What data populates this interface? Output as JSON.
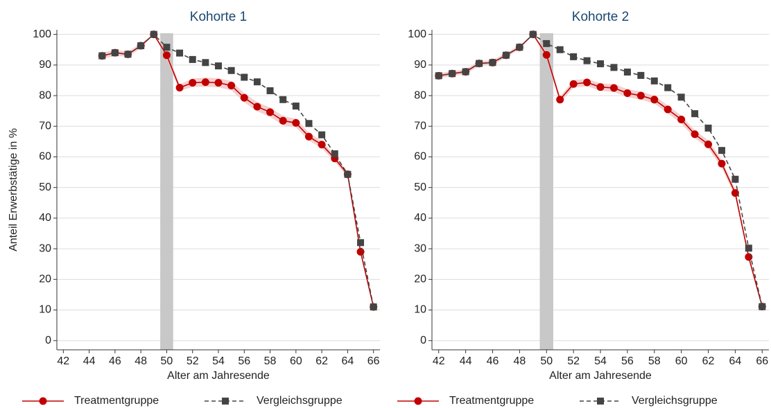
{
  "chart_data": [
    {
      "type": "line",
      "title": "Kohorte 1",
      "ylabel": "Anteil Erwerbstätige in %",
      "xlabel": "Alter am Jahresende",
      "x": [
        45,
        46,
        47,
        48,
        49,
        50,
        51,
        52,
        53,
        54,
        55,
        56,
        57,
        58,
        59,
        60,
        61,
        62,
        63,
        64,
        65,
        66
      ],
      "series": [
        {
          "name": "Treatmentgruppe",
          "color": "#c10000",
          "band_color": "#f2c4c4",
          "values": [
            93,
            94,
            93.5,
            96.3,
            100,
            93.2,
            82.6,
            84.2,
            84.4,
            84.2,
            83.3,
            79.3,
            76.4,
            74.6,
            71.8,
            71.1,
            66.6,
            64,
            59.5,
            54.3,
            29,
            11
          ],
          "lower": [
            92,
            93,
            92.7,
            95.5,
            100,
            92,
            81.6,
            82.8,
            82.9,
            82.7,
            81.8,
            77.8,
            74.9,
            73.1,
            70.3,
            69.7,
            65.3,
            62.8,
            58.4,
            53.4,
            28.3,
            10.6
          ],
          "upper": [
            94,
            95,
            94.3,
            97.1,
            100,
            94.4,
            83.6,
            85.6,
            85.9,
            85.7,
            84.8,
            80.8,
            77.9,
            76.1,
            73.3,
            72.5,
            67.9,
            65.2,
            60.6,
            55.2,
            29.7,
            11.4
          ]
        },
        {
          "name": "Vergleichsgruppe",
          "color": "#444444",
          "dashed": true,
          "values": [
            93,
            94,
            93.5,
            96.3,
            100,
            95.8,
            93.9,
            91.8,
            90.8,
            89.7,
            88.2,
            86,
            84.5,
            81.6,
            78.7,
            76.6,
            70.9,
            67.2,
            61,
            54.3,
            32,
            11
          ]
        }
      ],
      "shaded_region": {
        "x": [
          49.5,
          50.5
        ],
        "color": "#c8c8c8"
      },
      "xlim": [
        41.5,
        66.5
      ],
      "xticks": [
        42,
        44,
        46,
        48,
        50,
        52,
        54,
        56,
        58,
        60,
        62,
        64,
        66
      ],
      "ylim": [
        -3,
        101.5
      ],
      "yticks": [
        0,
        10,
        20,
        30,
        40,
        50,
        60,
        70,
        80,
        90,
        100
      ],
      "grid": true
    },
    {
      "type": "line",
      "title": "Kohorte 2",
      "xlabel": "Alter am Jahresende",
      "x": [
        42,
        43,
        44,
        45,
        46,
        47,
        48,
        49,
        50,
        51,
        52,
        53,
        54,
        55,
        56,
        57,
        58,
        59,
        60,
        61,
        62,
        63,
        64,
        65,
        66
      ],
      "series": [
        {
          "name": "Treatmentgruppe",
          "color": "#c10000",
          "band_color": "#f2c4c4",
          "values": [
            86.5,
            87.2,
            87.8,
            90.5,
            90.8,
            93.2,
            95.8,
            100,
            93.3,
            78.7,
            83.8,
            84.3,
            82.8,
            82.5,
            80.8,
            80,
            78.7,
            75.5,
            72.2,
            67.4,
            64.1,
            57.8,
            48.2,
            27.3,
            11.1
          ],
          "lower": [
            85.7,
            86.4,
            87,
            89.7,
            90,
            92.5,
            95.2,
            100,
            92.3,
            77.7,
            82.6,
            83.1,
            81.6,
            81.2,
            79.5,
            78.7,
            77.4,
            74.2,
            70.9,
            66.1,
            62.8,
            56.5,
            47,
            26.5,
            10.7
          ],
          "upper": [
            87.3,
            88,
            88.6,
            91.3,
            91.6,
            93.9,
            96.4,
            100,
            94.3,
            79.7,
            85,
            85.5,
            84,
            83.8,
            82.1,
            81.3,
            80,
            76.8,
            73.5,
            68.7,
            65.4,
            59.1,
            49.4,
            28.1,
            11.5
          ]
        },
        {
          "name": "Vergleichsgruppe",
          "color": "#444444",
          "dashed": true,
          "values": [
            86.5,
            87.2,
            87.8,
            90.5,
            90.8,
            93.2,
            95.8,
            100,
            97,
            95,
            92.7,
            91.4,
            90.4,
            89.2,
            87.7,
            86.6,
            84.8,
            82.6,
            79.5,
            74.1,
            69.4,
            62.1,
            52.7,
            30.2,
            11.1
          ]
        }
      ],
      "shaded_region": {
        "x": [
          49.5,
          50.5
        ],
        "color": "#c8c8c8"
      },
      "xlim": [
        41.5,
        66.5
      ],
      "xticks": [
        42,
        44,
        46,
        48,
        50,
        52,
        54,
        56,
        58,
        60,
        62,
        64,
        66
      ],
      "ylim": [
        -3,
        101.5
      ],
      "yticks": [
        0,
        10,
        20,
        30,
        40,
        50,
        60,
        70,
        80,
        90,
        100
      ],
      "grid": true
    }
  ]
}
